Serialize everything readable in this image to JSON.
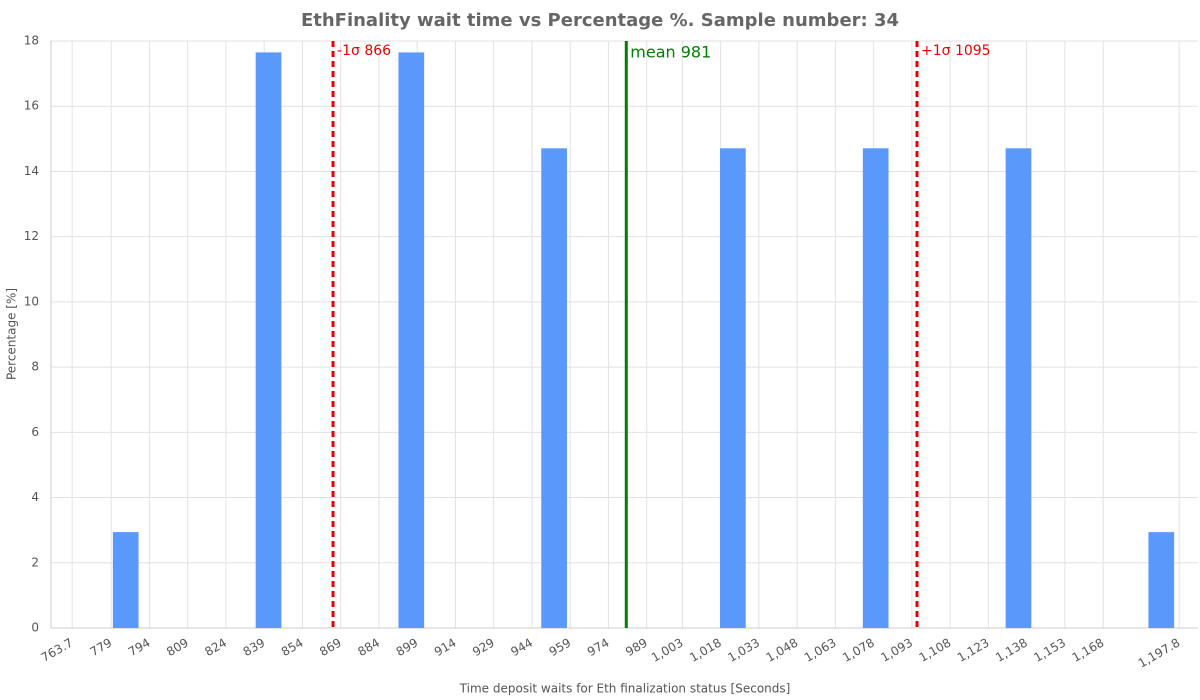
{
  "chart_data": {
    "type": "histogram",
    "title": "EthFinality wait time vs Percentage %. Sample number: 34",
    "xlabel": "Time deposit waits for Eth finalization status [Seconds]",
    "ylabel": "Percentage [%]",
    "bins": [
      763.7,
      777.7,
      791.7,
      805.7,
      819.7,
      833.7,
      847.7,
      861.7,
      875.7,
      889.7,
      903.7,
      917.7,
      931.7,
      945.7,
      959.7,
      973.7,
      987.8,
      1001.8,
      1015.8,
      1029.8,
      1043.8,
      1057.8,
      1071.8,
      1085.8,
      1099.8,
      1113.8,
      1127.8,
      1141.8,
      1155.8,
      1169.8,
      1183.8,
      1197.8
    ],
    "values": [
      0,
      2.94,
      0,
      0,
      0,
      17.65,
      0,
      0,
      0,
      17.65,
      0,
      0,
      0,
      14.71,
      0,
      0,
      0,
      0,
      14.71,
      0,
      0,
      0,
      14.71,
      0,
      0,
      0,
      14.71,
      0,
      0,
      0,
      2.94
    ],
    "color": "#5b98fc",
    "xlim": [
      755.4,
      1205.2
    ],
    "ylim": [
      0,
      18
    ],
    "xticks": [
      763.7,
      779,
      794,
      809,
      824,
      839,
      854,
      869,
      884,
      899,
      914,
      929,
      944,
      959,
      974,
      989,
      {
        "value": 1003,
        "label": "1,003"
      },
      {
        "value": 1018,
        "label": "1,018"
      },
      {
        "value": 1033,
        "label": "1,033"
      },
      {
        "value": 1048,
        "label": "1,048"
      },
      {
        "value": 1063,
        "label": "1,063"
      },
      {
        "value": 1078,
        "label": "1,078"
      },
      {
        "value": 1093,
        "label": "1,093"
      },
      {
        "value": 1108,
        "label": "1,108"
      },
      {
        "value": 1123,
        "label": "1,123"
      },
      {
        "value": 1138,
        "label": "1,138"
      },
      {
        "value": 1153,
        "label": "1,153"
      },
      {
        "value": 1168,
        "label": "1,168"
      },
      {
        "value": 1197.8,
        "label": "1,197.8"
      }
    ],
    "yticks": [
      0,
      2,
      4,
      6,
      8,
      10,
      12,
      14,
      16,
      18
    ],
    "grid": true,
    "annotations": [
      {
        "x": 866,
        "label": "-1σ 866",
        "color": "#ee0000",
        "style": "dashed"
      },
      {
        "x": 981,
        "label": "mean 981",
        "color": "#008000",
        "style": "solid"
      },
      {
        "x": 1095,
        "label": "+1σ 1095",
        "color": "#ee0000",
        "style": "dashed"
      }
    ]
  }
}
